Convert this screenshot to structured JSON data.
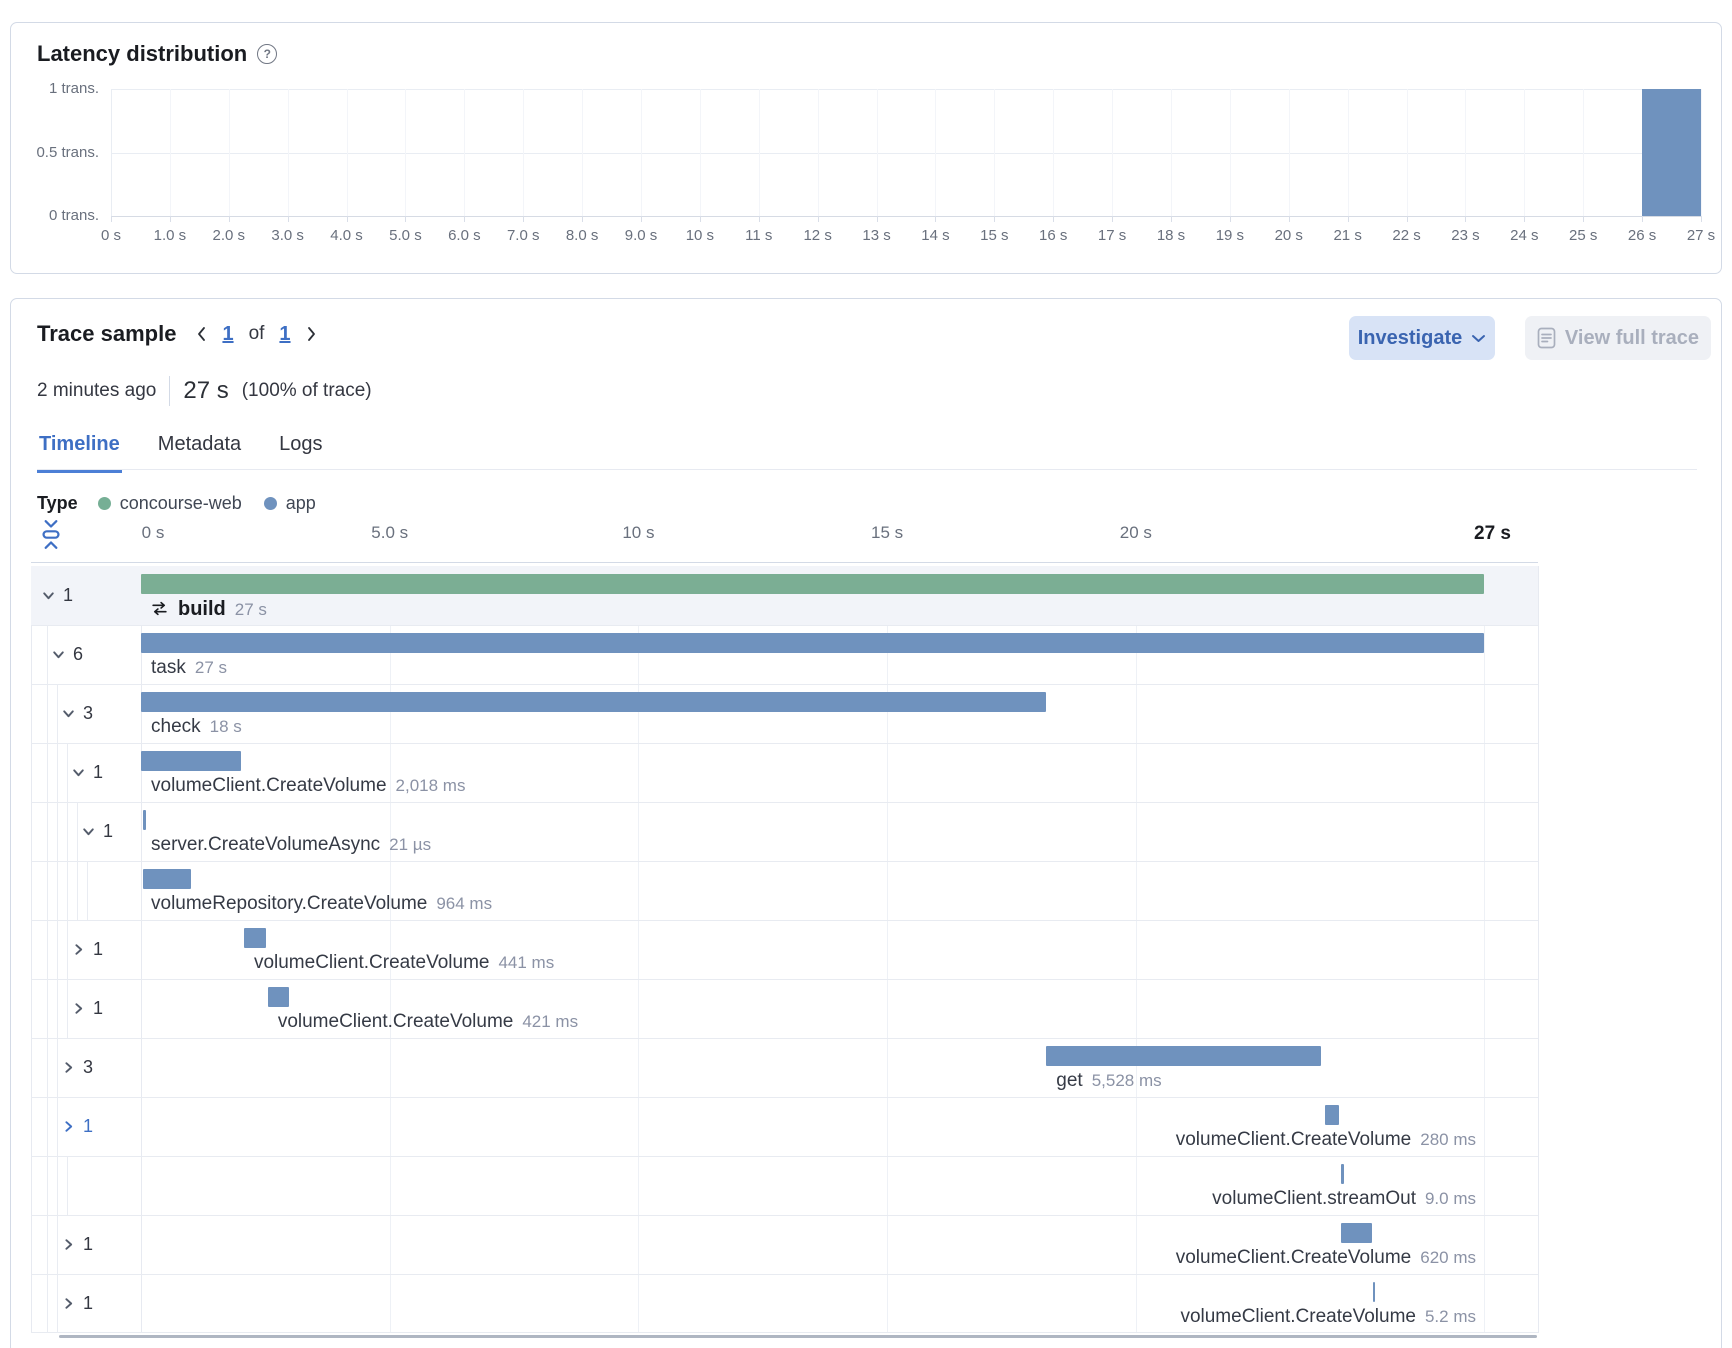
{
  "latency_panel": {
    "title": "Latency distribution",
    "chart_data": {
      "type": "bar",
      "title": "Latency distribution",
      "x_unit": "seconds",
      "y_unit": "transactions",
      "xlim": [
        0,
        27
      ],
      "ylim": [
        0,
        1
      ],
      "grid": true,
      "y_tick_labels": [
        "1 trans.",
        "0.5 trans.",
        "0 trans."
      ],
      "y_tick_values": [
        1,
        0.5,
        0
      ],
      "x_tick_labels": [
        "0 s",
        "1.0 s",
        "2.0 s",
        "3.0 s",
        "4.0 s",
        "5.0 s",
        "6.0 s",
        "7.0 s",
        "8.0 s",
        "9.0 s",
        "10 s",
        "11 s",
        "12 s",
        "13 s",
        "14 s",
        "15 s",
        "16 s",
        "17 s",
        "18 s",
        "19 s",
        "20 s",
        "21 s",
        "22 s",
        "23 s",
        "24 s",
        "25 s",
        "26 s",
        "27 s"
      ],
      "bars": [
        {
          "x_start": 26,
          "x_end": 27,
          "count": 1
        }
      ],
      "bar_color": "#6F92BE"
    }
  },
  "trace_panel": {
    "title": "Trace sample",
    "pagination": {
      "prev_icon": "chevron-left-icon",
      "current": "1",
      "of_label": "of",
      "total": "1",
      "next_icon": "chevron-right-icon"
    },
    "buttons": {
      "investigate": "Investigate",
      "view_full_trace": "View full trace"
    },
    "summary": {
      "timestamp": "2 minutes ago",
      "duration": "27 s",
      "percent": "(100% of trace)"
    },
    "tabs": [
      {
        "label": "Timeline",
        "active": true
      },
      {
        "label": "Metadata",
        "active": false
      },
      {
        "label": "Logs",
        "active": false
      }
    ],
    "legend": {
      "label": "Type",
      "items": [
        {
          "name": "concourse-web",
          "color": "#76AF95"
        },
        {
          "name": "app",
          "color": "#6F92BE"
        }
      ]
    },
    "timeline_axis": {
      "ticks": [
        {
          "label": "0 s",
          "seconds": 0
        },
        {
          "label": "5.0 s",
          "seconds": 5
        },
        {
          "label": "10 s",
          "seconds": 10
        },
        {
          "label": "15 s",
          "seconds": 15
        },
        {
          "label": "20 s",
          "seconds": 20
        },
        {
          "label": "27 s",
          "seconds": 27,
          "emphasis": true
        }
      ]
    },
    "waterfall": {
      "duration_seconds": 27,
      "bar_colors": {
        "green": "#7BAE94",
        "blue": "#6F92BE"
      },
      "rows": [
        {
          "name": "build",
          "duration": "27 s",
          "start_s": 0,
          "dur_s": 27,
          "color": "green",
          "level": 0,
          "toggle": {
            "state": "expanded",
            "count": "1"
          },
          "selected": true,
          "emphasis": true,
          "icon": "merge-icon",
          "label_align": "origin"
        },
        {
          "name": "task",
          "duration": "27 s",
          "start_s": 0,
          "dur_s": 27,
          "color": "blue",
          "level": 1,
          "toggle": {
            "state": "expanded",
            "count": "6"
          },
          "label_align": "origin"
        },
        {
          "name": "check",
          "duration": "18 s",
          "start_s": 0,
          "dur_s": 18.2,
          "color": "blue",
          "level": 2,
          "toggle": {
            "state": "expanded",
            "count": "3"
          },
          "label_align": "origin"
        },
        {
          "name": "volumeClient.CreateVolume",
          "duration": "2,018 ms",
          "start_s": 0,
          "dur_s": 2.018,
          "color": "blue",
          "level": 3,
          "toggle": {
            "state": "expanded",
            "count": "1"
          },
          "label_align": "origin"
        },
        {
          "name": "server.CreateVolumeAsync",
          "duration": "21 µs",
          "start_s": 0.05,
          "dur_s": 2.1e-05,
          "color": "blue",
          "level": 4,
          "toggle": {
            "state": "expanded",
            "count": "1"
          },
          "label_align": "origin"
        },
        {
          "name": "volumeRepository.CreateVolume",
          "duration": "964 ms",
          "start_s": 0.05,
          "dur_s": 0.964,
          "color": "blue",
          "level": 5,
          "toggle": null,
          "label_align": "origin"
        },
        {
          "name": "volumeClient.CreateVolume",
          "duration": "441 ms",
          "start_s": 2.07,
          "dur_s": 0.441,
          "color": "blue",
          "level": 3,
          "toggle": {
            "state": "collapsed",
            "count": "1"
          },
          "label_align": "bar"
        },
        {
          "name": "volumeClient.CreateVolume",
          "duration": "421 ms",
          "start_s": 2.55,
          "dur_s": 0.421,
          "color": "blue",
          "level": 3,
          "toggle": {
            "state": "collapsed",
            "count": "1"
          },
          "label_align": "bar"
        },
        {
          "name": "get",
          "duration": "5,528 ms",
          "start_s": 18.2,
          "dur_s": 5.528,
          "color": "blue",
          "level": 2,
          "toggle": {
            "state": "collapsed",
            "count": "3"
          },
          "label_align": "bar"
        },
        {
          "name": "volumeClient.CreateVolume",
          "duration": "280 ms",
          "start_s": 23.8,
          "dur_s": 0.28,
          "color": "blue",
          "level": 2,
          "toggle": {
            "state": "collapsed",
            "count": "1",
            "highlight": true
          },
          "label_align": "right"
        },
        {
          "name": "volumeClient.streamOut",
          "duration": "9.0 ms",
          "start_s": 24.13,
          "dur_s": 0.009,
          "color": "blue",
          "level": 3,
          "toggle": null,
          "label_align": "right"
        },
        {
          "name": "volumeClient.CreateVolume",
          "duration": "620 ms",
          "start_s": 24.13,
          "dur_s": 0.62,
          "color": "blue",
          "level": 2,
          "toggle": {
            "state": "collapsed",
            "count": "1"
          },
          "label_align": "right"
        },
        {
          "name": "volumeClient.CreateVolume",
          "duration": "5.2 ms",
          "start_s": 24.76,
          "dur_s": 0.0052,
          "color": "blue",
          "level": 2,
          "toggle": {
            "state": "collapsed",
            "count": "1"
          },
          "label_align": "right"
        }
      ]
    }
  }
}
